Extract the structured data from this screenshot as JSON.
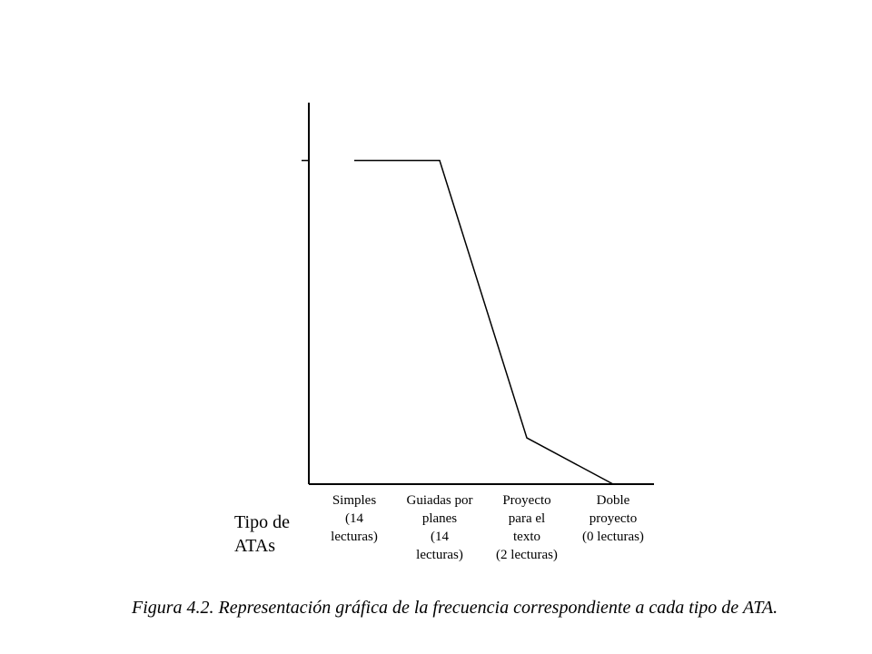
{
  "chart_data": {
    "type": "line",
    "categories": [
      [
        "Simples",
        "(14",
        "lecturas)"
      ],
      [
        "Guiadas por",
        "planes",
        "(14",
        "lecturas)"
      ],
      [
        "Proyecto",
        "para el",
        "texto",
        "(2 lecturas)"
      ],
      [
        "Doble",
        "proyecto",
        "(0 lecturas)"
      ]
    ],
    "values": [
      14,
      14,
      2,
      0
    ],
    "color": "#000000",
    "ylim": [
      0,
      16.5
    ],
    "yticks": [
      14
    ],
    "x_label": [
      "Tipo de",
      "ATAs"
    ],
    "caption": "Figura 4.2. Representación gráfica de la frecuencia correspondiente a cada tipo de ATA."
  }
}
